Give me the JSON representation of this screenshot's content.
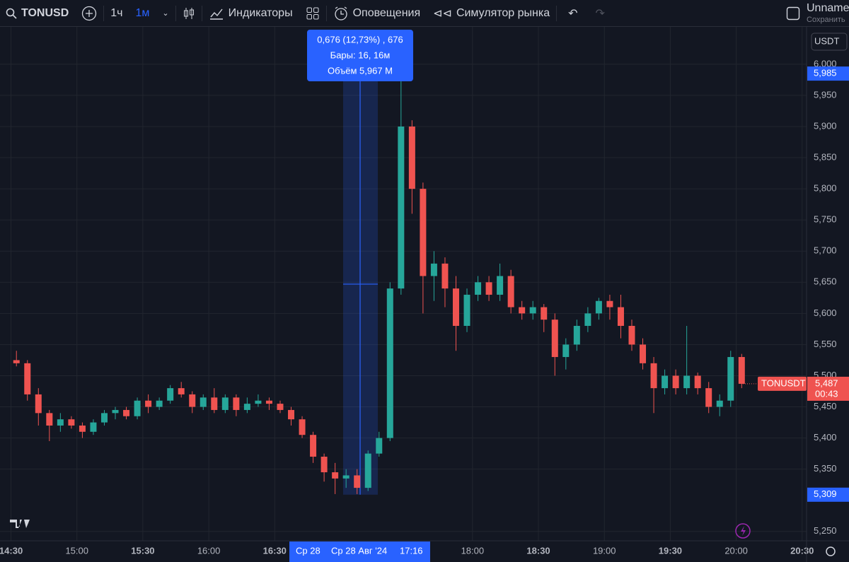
{
  "toolbar": {
    "symbol": "TONUSD",
    "intervals": [
      "1ч",
      "1м"
    ],
    "indicators": "Индикаторы",
    "alerts": "Оповещения",
    "replay": "Симулятор рынка",
    "layout_name": "Unnamed",
    "save": "Сохранить"
  },
  "currency": "USDT",
  "chart_data": {
    "type": "candlestick",
    "up_color": "#26a69a",
    "down_color": "#ef5350",
    "grid": true,
    "x": [
      "14:30",
      "14:35",
      "14:40",
      "14:45",
      "14:50",
      "14:55",
      "15:00",
      "15:05",
      "15:10",
      "15:15",
      "15:20",
      "15:25",
      "15:30",
      "15:35",
      "15:40",
      "15:45",
      "15:50",
      "15:55",
      "16:00",
      "16:05",
      "16:10",
      "16:15",
      "16:20",
      "16:25",
      "16:30",
      "16:35",
      "16:40",
      "16:45",
      "16:50",
      "16:55",
      "17:00",
      "17:05",
      "17:10",
      "17:15",
      "17:20",
      "17:25",
      "17:30",
      "17:35",
      "17:40",
      "17:45",
      "17:50",
      "17:55",
      "18:00",
      "18:05",
      "18:10",
      "18:15",
      "18:20",
      "18:25",
      "18:30",
      "18:35",
      "18:40",
      "18:45",
      "18:50",
      "18:55",
      "19:00",
      "19:05",
      "19:10",
      "19:15",
      "19:20",
      "19:25",
      "19:30",
      "19:35",
      "19:40",
      "19:45",
      "19:50",
      "19:55",
      "20:00"
    ],
    "open": [
      5.525,
      5.52,
      5.47,
      5.44,
      5.42,
      5.43,
      5.42,
      5.41,
      5.425,
      5.44,
      5.445,
      5.435,
      5.46,
      5.45,
      5.46,
      5.48,
      5.47,
      5.45,
      5.465,
      5.445,
      5.465,
      5.445,
      5.455,
      5.46,
      5.455,
      5.445,
      5.43,
      5.405,
      5.37,
      5.345,
      5.335,
      5.34,
      5.32,
      5.375,
      5.4,
      5.64,
      5.9,
      5.8,
      5.66,
      5.68,
      5.64,
      5.58,
      5.63,
      5.65,
      5.63,
      5.66,
      5.61,
      5.6,
      5.61,
      5.59,
      5.53,
      5.55,
      5.58,
      5.6,
      5.62,
      5.61,
      5.58,
      5.55,
      5.52,
      5.48,
      5.5,
      5.48,
      5.5,
      5.48,
      5.45,
      5.46,
      5.53
    ],
    "high": [
      5.54,
      5.525,
      5.48,
      5.445,
      5.44,
      5.435,
      5.425,
      5.43,
      5.445,
      5.45,
      5.45,
      5.465,
      5.47,
      5.465,
      5.485,
      5.49,
      5.475,
      5.47,
      5.48,
      5.47,
      5.47,
      5.465,
      5.47,
      5.465,
      5.46,
      5.45,
      5.435,
      5.41,
      5.375,
      5.36,
      5.35,
      5.35,
      5.38,
      5.41,
      5.65,
      5.985,
      5.91,
      5.81,
      5.7,
      5.69,
      5.66,
      5.64,
      5.66,
      5.66,
      5.68,
      5.67,
      5.62,
      5.62,
      5.615,
      5.6,
      5.56,
      5.59,
      5.61,
      5.625,
      5.63,
      5.63,
      5.59,
      5.56,
      5.53,
      5.51,
      5.51,
      5.58,
      5.505,
      5.49,
      5.47,
      5.54,
      5.535
    ],
    "low": [
      5.515,
      5.46,
      5.42,
      5.395,
      5.41,
      5.415,
      5.4,
      5.405,
      5.42,
      5.43,
      5.43,
      5.43,
      5.44,
      5.445,
      5.455,
      5.465,
      5.44,
      5.445,
      5.44,
      5.44,
      5.435,
      5.44,
      5.45,
      5.445,
      5.44,
      5.42,
      5.4,
      5.36,
      5.33,
      5.31,
      5.32,
      5.31,
      5.315,
      5.37,
      5.395,
      5.63,
      5.76,
      5.6,
      5.62,
      5.61,
      5.54,
      5.57,
      5.62,
      5.62,
      5.62,
      5.6,
      5.59,
      5.59,
      5.57,
      5.5,
      5.51,
      5.54,
      5.57,
      5.59,
      5.59,
      5.56,
      5.54,
      5.51,
      5.44,
      5.47,
      5.47,
      5.47,
      5.47,
      5.44,
      5.435,
      5.45,
      5.48
    ],
    "close": [
      5.52,
      5.47,
      5.44,
      5.42,
      5.43,
      5.42,
      5.41,
      5.425,
      5.44,
      5.445,
      5.435,
      5.46,
      5.45,
      5.46,
      5.48,
      5.47,
      5.45,
      5.465,
      5.445,
      5.465,
      5.445,
      5.455,
      5.46,
      5.455,
      5.445,
      5.43,
      5.405,
      5.37,
      5.345,
      5.335,
      5.34,
      5.32,
      5.375,
      5.4,
      5.64,
      5.9,
      5.8,
      5.66,
      5.68,
      5.64,
      5.58,
      5.63,
      5.65,
      5.63,
      5.66,
      5.61,
      5.6,
      5.61,
      5.59,
      5.53,
      5.55,
      5.58,
      5.6,
      5.62,
      5.61,
      5.58,
      5.55,
      5.52,
      5.48,
      5.5,
      5.48,
      5.5,
      5.48,
      5.45,
      5.46,
      5.53,
      5.487
    ],
    "xlim": [
      "14:25",
      "20:32"
    ],
    "xticks": [
      "14:30",
      "15:00",
      "15:30",
      "16:00",
      "16:30",
      "18:00",
      "18:30",
      "19:00",
      "19:30",
      "20:00",
      "20:30"
    ],
    "ylim": [
      5.235,
      6.06
    ],
    "yticks": [
      {
        "value": 6.0,
        "label": "6,000"
      },
      {
        "value": 5.95,
        "label": "5,950"
      },
      {
        "value": 5.9,
        "label": "5,900"
      },
      {
        "value": 5.85,
        "label": "5,850"
      },
      {
        "value": 5.8,
        "label": "5,800"
      },
      {
        "value": 5.75,
        "label": "5,750"
      },
      {
        "value": 5.7,
        "label": "5,700"
      },
      {
        "value": 5.65,
        "label": "5,650"
      },
      {
        "value": 5.6,
        "label": "5,600"
      },
      {
        "value": 5.55,
        "label": "5,550"
      },
      {
        "value": 5.5,
        "label": "5,500"
      },
      {
        "value": 5.45,
        "label": "5,450"
      },
      {
        "value": 5.4,
        "label": "5,400"
      },
      {
        "value": 5.35,
        "label": "5,350"
      },
      {
        "value": 5.25,
        "label": "5,250"
      }
    ],
    "measure": {
      "high": {
        "value": 5.985,
        "label": "5,985"
      },
      "low": {
        "value": 5.309,
        "label": "5,309"
      },
      "change": "0,676 (12,73%) , 676",
      "bars": "Бары: 16, 16м",
      "volume": "Объём 5,967 M"
    },
    "last": {
      "symbol": "TONUSDT",
      "price": {
        "value": 5.487,
        "label": "5,487"
      },
      "countdown": "00:43"
    },
    "crosshair": {
      "day": "Ср 28",
      "date": "Ср 28 Авг '24",
      "time": "17:16"
    }
  }
}
